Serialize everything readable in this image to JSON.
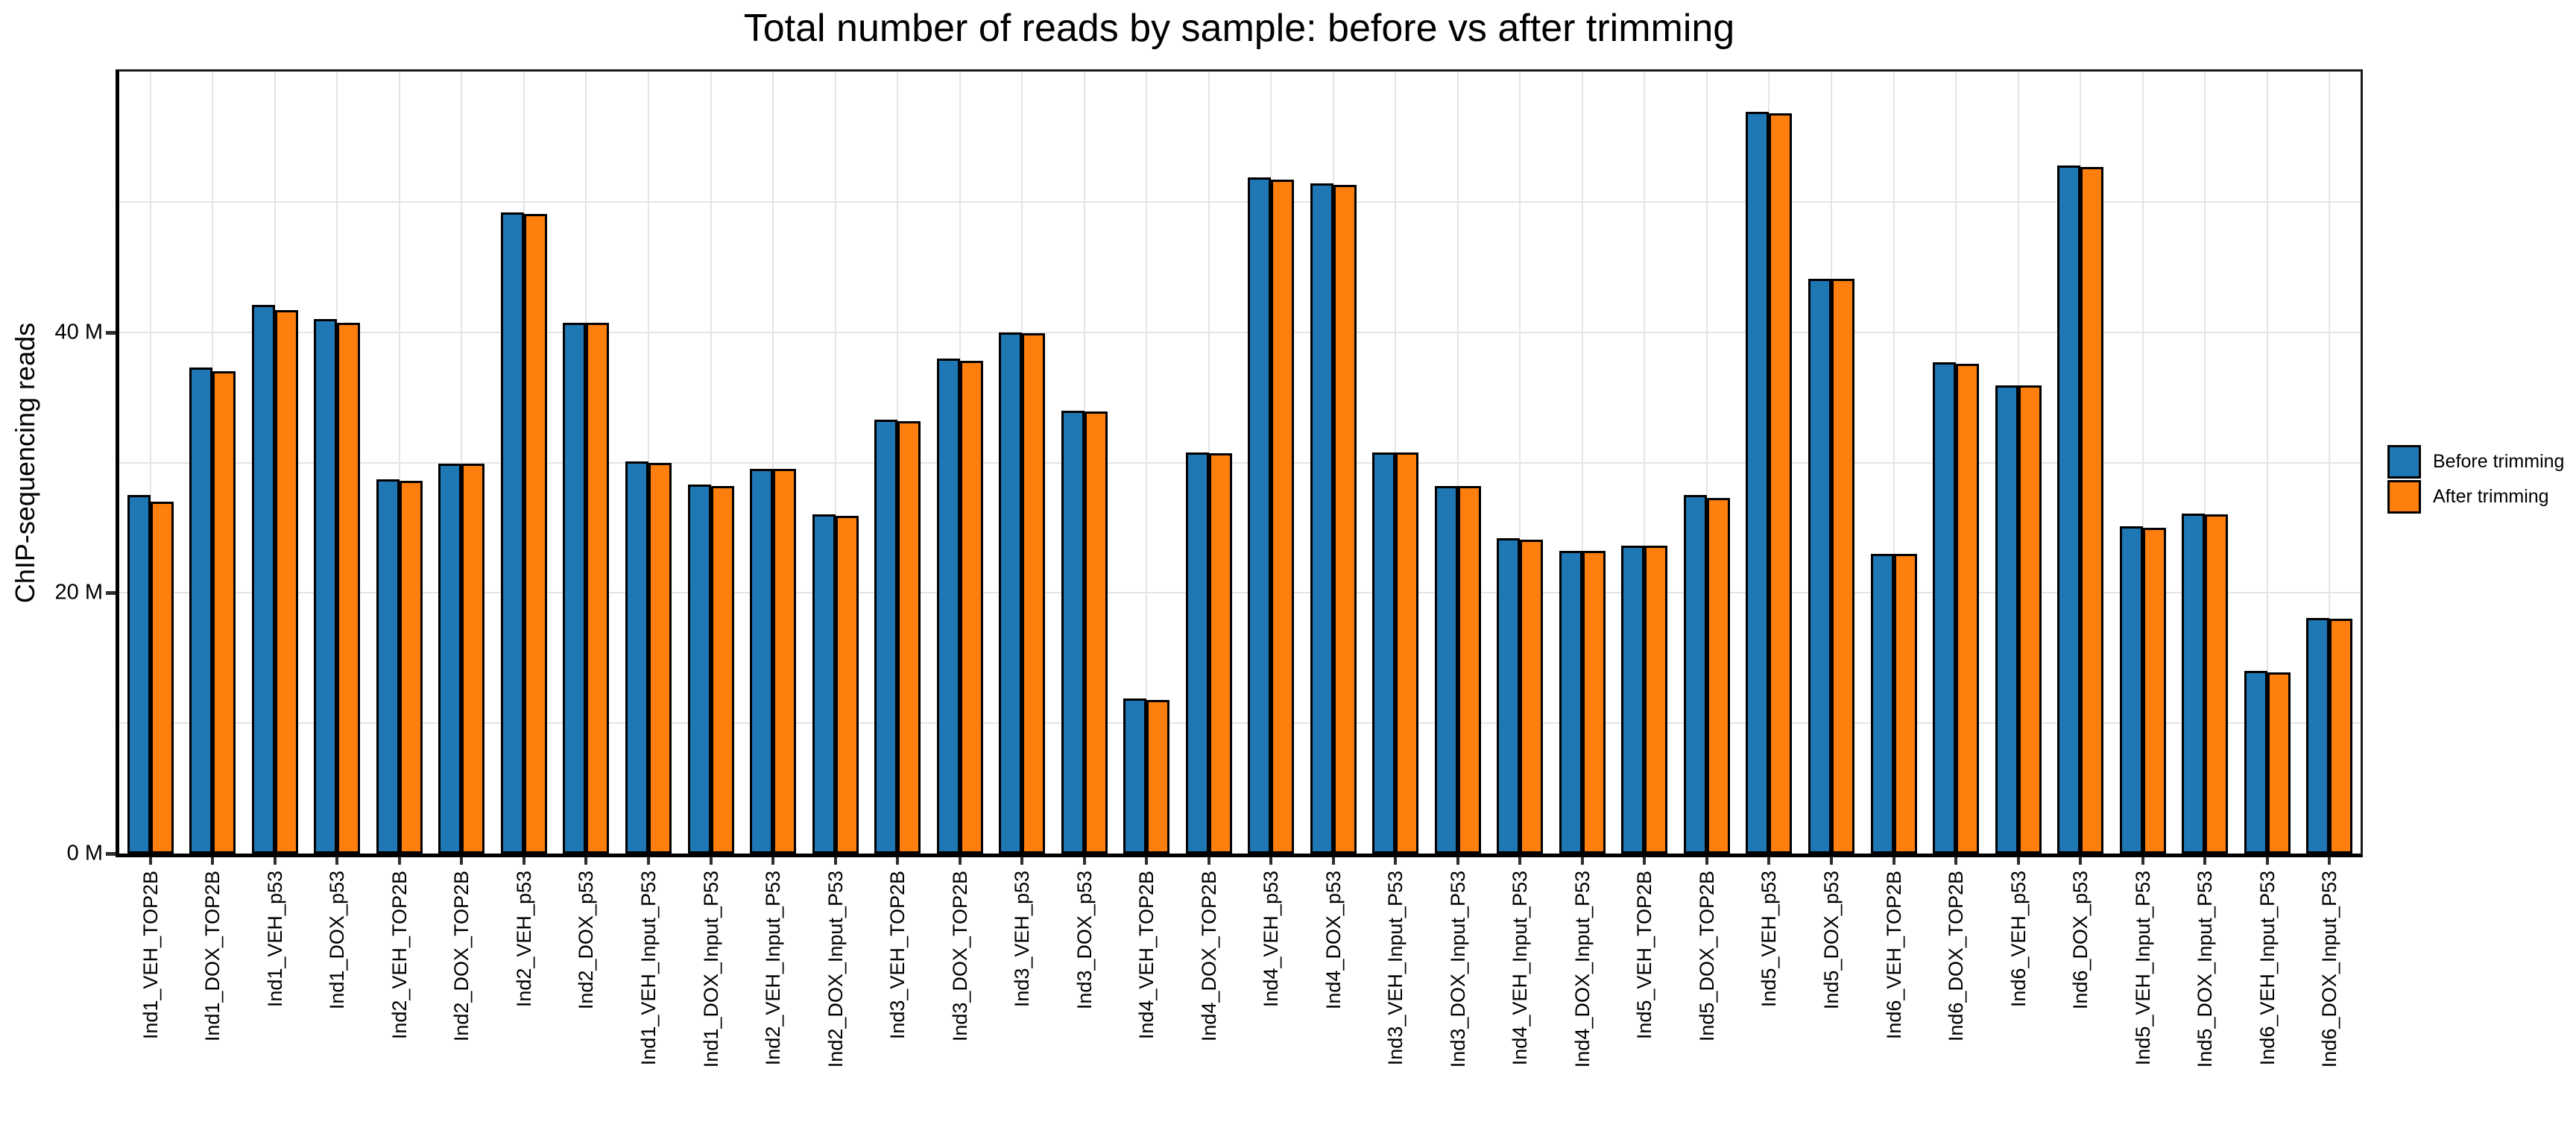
{
  "title": "Total number of reads by sample: before vs after trimming",
  "y_axis": {
    "label": "ChIP-sequencing reads",
    "ticks": [
      {
        "value": 0,
        "label": "0 M"
      },
      {
        "value": 20,
        "label": "20 M"
      },
      {
        "value": 40,
        "label": "40 M"
      }
    ],
    "max": 60,
    "gridline_step": 10
  },
  "colors": {
    "before": "#1f77b4",
    "after": "#ff7f0e",
    "bar_edge": "#000000",
    "gridline": "#e5e5e5"
  },
  "legend": {
    "position": "right",
    "entries": [
      "Before trimming",
      "After trimming"
    ]
  },
  "chart_data": {
    "type": "bar",
    "title": "Total number of reads by sample: before vs after trimming",
    "xlabel": "",
    "ylabel": "ChIP-sequencing reads",
    "ylim": [
      0,
      60
    ],
    "unit": "millions of reads",
    "grid": true,
    "legend_position": "right",
    "categories": [
      "Ind1_VEH_TOP2B",
      "Ind1_DOX_TOP2B",
      "Ind1_VEH_p53",
      "Ind1_DOX_p53",
      "Ind2_VEH_TOP2B",
      "Ind2_DOX_TOP2B",
      "Ind2_VEH_p53",
      "Ind2_DOX_p53",
      "Ind1_VEH_Input_P53",
      "Ind1_DOX_Input_P53",
      "Ind2_VEH_Input_P53",
      "Ind2_DOX_Input_P53",
      "Ind3_VEH_TOP2B",
      "Ind3_DOX_TOP2B",
      "Ind3_VEH_p53",
      "Ind3_DOX_p53",
      "Ind4_VEH_TOP2B",
      "Ind4_DOX_TOP2B",
      "Ind4_VEH_p53",
      "Ind4_DOX_p53",
      "Ind3_VEH_Input_P53",
      "Ind3_DOX_Input_P53",
      "Ind4_VEH_Input_P53",
      "Ind4_DOX_Input_P53",
      "Ind5_VEH_TOP2B",
      "Ind5_DOX_TOP2B",
      "Ind5_VEH_p53",
      "Ind5_DOX_p53",
      "Ind6_VEH_TOP2B",
      "Ind6_DOX_TOP2B",
      "Ind6_VEH_p53",
      "Ind6_DOX_p53",
      "Ind5_VEH_Input_P53",
      "Ind5_DOX_Input_P53",
      "Ind6_VEH_Input_P53",
      "Ind6_DOX_Input_P53"
    ],
    "series": [
      {
        "name": "Before trimming",
        "color": "#1f77b4",
        "values": [
          27.5,
          37.3,
          42.1,
          41.0,
          28.7,
          29.9,
          49.2,
          40.7,
          30.1,
          28.3,
          29.5,
          26.0,
          33.3,
          38.0,
          40.0,
          34.0,
          11.9,
          30.8,
          51.9,
          51.4,
          30.8,
          28.2,
          24.2,
          23.2,
          23.6,
          27.5,
          56.9,
          44.1,
          23.0,
          37.7,
          35.9,
          52.8,
          25.1,
          26.1,
          14.0,
          18.1
        ]
      },
      {
        "name": "After trimming",
        "color": "#ff7f0e",
        "values": [
          27.0,
          37.0,
          41.7,
          40.7,
          28.6,
          29.9,
          49.1,
          40.7,
          30.0,
          28.2,
          29.5,
          25.9,
          33.2,
          37.8,
          39.9,
          33.9,
          11.8,
          30.7,
          51.7,
          51.3,
          30.8,
          28.2,
          24.1,
          23.2,
          23.6,
          27.3,
          56.8,
          44.1,
          23.0,
          37.6,
          35.9,
          52.7,
          25.0,
          26.0,
          13.9,
          18.0
        ]
      }
    ]
  }
}
